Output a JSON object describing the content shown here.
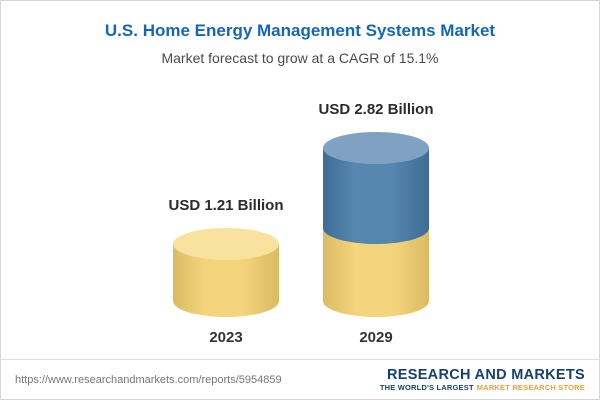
{
  "chart_data": {
    "type": "bar",
    "title": "U.S. Home Energy Management Systems Market",
    "subtitle": "Market forecast to grow at a CAGR of 15.1%",
    "cagr": "15.1%",
    "categories": [
      "2023",
      "2029"
    ],
    "values": [
      1.21,
      2.82
    ],
    "value_labels": [
      "USD 1.21 Billion",
      "USD 2.82 Billion"
    ],
    "unit": "USD Billion",
    "ylim": [
      0,
      3
    ],
    "grid": false,
    "legend": "none",
    "bar_style": "3d-cylinder, 2029 bar stacked: base segment equals 2023 value, accent segment is growth",
    "colors": {
      "base": "#F3D06E",
      "baseTop": "#F8E29E",
      "accent": "#4478A6",
      "accentTop": "#7FA2C2",
      "title": "#1666B8",
      "logoNavy": "#16416F",
      "logoGold": "#E9A13B"
    }
  },
  "footer": {
    "url": "https://www.researchandmarkets.com/reports/5954859",
    "logo": {
      "name": "RESEARCH AND MARKETS",
      "tagline_lead": "THE WORLD'S LARGEST",
      "tagline_tail": "MARKET RESEARCH STORE"
    }
  }
}
